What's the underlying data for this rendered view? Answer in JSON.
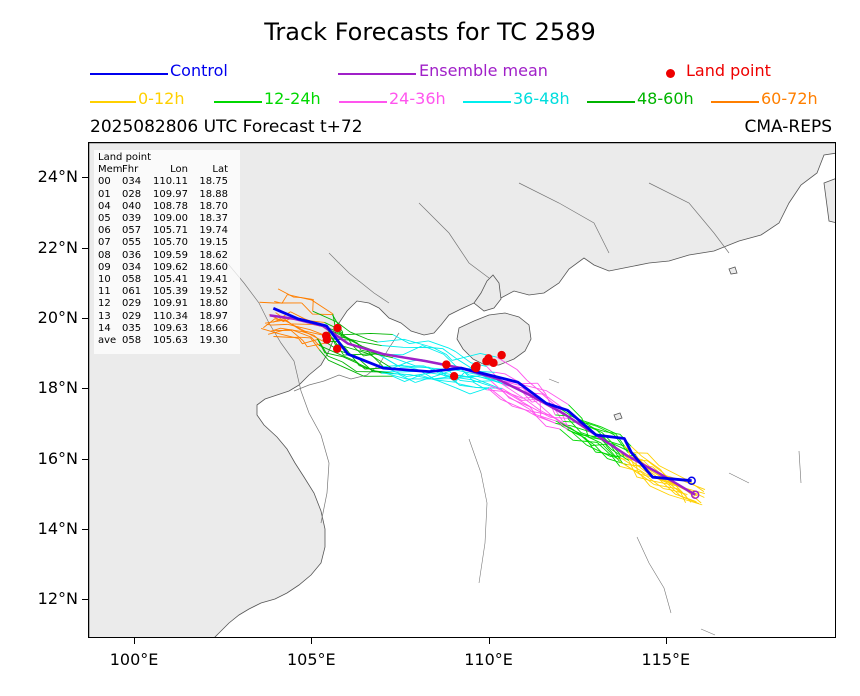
{
  "title": "Track Forecasts for TC 2589",
  "legend": {
    "row1": [
      {
        "label": "Control",
        "color": "#0000ee",
        "kind": "line"
      },
      {
        "label": "Ensemble mean",
        "color": "#a020c8",
        "kind": "line"
      },
      {
        "label": "Land point",
        "color": "#ee0000",
        "kind": "dot"
      }
    ],
    "row2": [
      {
        "label": "0-12h",
        "color": "#ffd000"
      },
      {
        "label": "12-24h",
        "color": "#00d800"
      },
      {
        "label": "24-36h",
        "color": "#ff55ee"
      },
      {
        "label": "36-48h",
        "color": "#00eeee"
      },
      {
        "label": "48-60h",
        "color": "#00b400"
      },
      {
        "label": "60-72h",
        "color": "#ff7f00"
      }
    ]
  },
  "subtitle_left": "2025082806 UTC Forecast t+72",
  "subtitle_right": "CMA-REPS",
  "axes": {
    "lon_range": [
      98.7,
      119.8
    ],
    "lat_range": [
      10.9,
      25.0
    ],
    "x_ticks": [
      "100°E",
      "105°E",
      "110°E",
      "115°E"
    ],
    "x_tick_values": [
      100,
      105,
      110,
      115
    ],
    "y_ticks": [
      "24°N",
      "22°N",
      "20°N",
      "18°N",
      "16°N",
      "14°N",
      "12°N"
    ],
    "y_tick_values": [
      24,
      22,
      20,
      18,
      16,
      14,
      12
    ]
  },
  "land_table": {
    "title": "Land point",
    "header": [
      "Mem",
      "Fhr",
      "Lon",
      "Lat"
    ],
    "rows": [
      [
        "00",
        "034",
        "110.11",
        "18.75"
      ],
      [
        "01",
        "028",
        "109.97",
        "18.88"
      ],
      [
        "04",
        "040",
        "108.78",
        "18.70"
      ],
      [
        "05",
        "039",
        "109.00",
        "18.37"
      ],
      [
        "06",
        "057",
        "105.71",
        "19.74"
      ],
      [
        "07",
        "055",
        "105.70",
        "19.15"
      ],
      [
        "08",
        "036",
        "109.59",
        "18.62"
      ],
      [
        "09",
        "034",
        "109.62",
        "18.60"
      ],
      [
        "10",
        "058",
        "105.41",
        "19.41"
      ],
      [
        "11",
        "061",
        "105.39",
        "19.52"
      ],
      [
        "12",
        "029",
        "109.91",
        "18.80"
      ],
      [
        "13",
        "029",
        "110.34",
        "18.97"
      ],
      [
        "14",
        "035",
        "109.63",
        "18.66"
      ],
      [
        "ave",
        "058",
        "105.63",
        "19.30"
      ]
    ]
  },
  "control_track": [
    [
      115.7,
      15.4
    ],
    [
      114.6,
      15.5
    ],
    [
      114.0,
      16.2
    ],
    [
      113.8,
      16.6
    ],
    [
      113.0,
      16.7
    ],
    [
      112.2,
      17.4
    ],
    [
      111.6,
      17.6
    ],
    [
      110.8,
      18.2
    ],
    [
      110.0,
      18.4
    ],
    [
      109.2,
      18.6
    ],
    [
      108.3,
      18.5
    ],
    [
      107.0,
      18.6
    ],
    [
      106.0,
      19.0
    ],
    [
      105.4,
      19.8
    ],
    [
      104.6,
      20.0
    ],
    [
      103.9,
      20.3
    ]
  ],
  "mean_track": [
    [
      115.8,
      15.0
    ],
    [
      114.8,
      15.6
    ],
    [
      113.9,
      16.1
    ],
    [
      113.0,
      16.7
    ],
    [
      112.1,
      17.3
    ],
    [
      111.2,
      17.8
    ],
    [
      110.2,
      18.3
    ],
    [
      109.2,
      18.6
    ],
    [
      108.2,
      18.8
    ],
    [
      107.0,
      19.0
    ],
    [
      106.0,
      19.3
    ],
    [
      105.3,
      19.8
    ],
    [
      104.5,
      20.0
    ],
    [
      103.8,
      20.1
    ]
  ],
  "land_points": [
    [
      110.11,
      18.75
    ],
    [
      109.97,
      18.88
    ],
    [
      108.78,
      18.7
    ],
    [
      109.0,
      18.37
    ],
    [
      105.71,
      19.74
    ],
    [
      105.7,
      19.15
    ],
    [
      109.59,
      18.62
    ],
    [
      109.62,
      18.6
    ],
    [
      105.41,
      19.41
    ],
    [
      105.39,
      19.52
    ],
    [
      109.91,
      18.8
    ],
    [
      110.34,
      18.97
    ],
    [
      109.63,
      18.66
    ]
  ]
}
